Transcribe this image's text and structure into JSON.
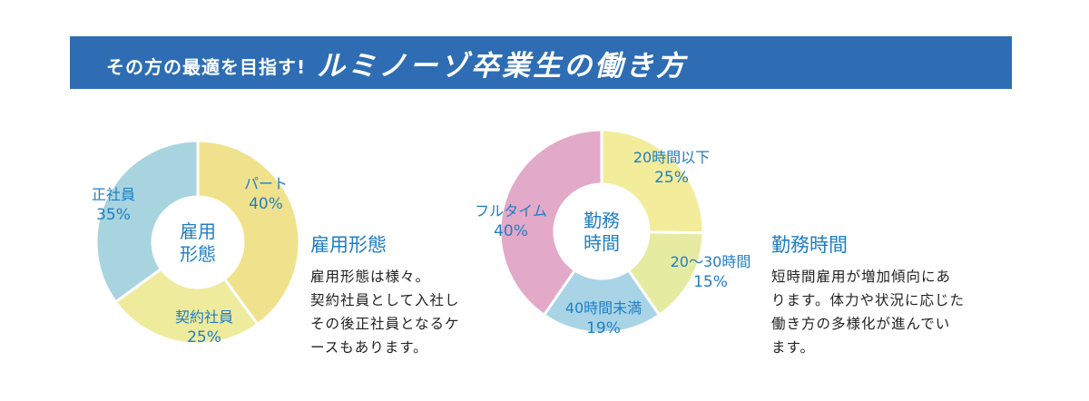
{
  "header": {
    "subtitle": "その方の最適を目指す!",
    "title": "ルミノーゾ卒業生の働き方"
  },
  "chart_data": [
    {
      "type": "pie",
      "title": "雇用形態",
      "center_label": [
        "雇用",
        "形態"
      ],
      "slices": [
        {
          "label": "パート",
          "value": 40,
          "display": "40%",
          "color": "#f0e28c"
        },
        {
          "label": "契約社員",
          "value": 25,
          "display": "25%",
          "color": "#eeeb9c"
        },
        {
          "label": "正社員",
          "value": 35,
          "display": "35%",
          "color": "#a8d4df"
        }
      ]
    },
    {
      "type": "pie",
      "title": "勤務時間",
      "center_label": [
        "勤務",
        "時間"
      ],
      "slices": [
        {
          "label": "20時間以下",
          "value": 25,
          "display": "25%",
          "color": "#f3ec9a"
        },
        {
          "label": "20〜30時間",
          "value": 15,
          "display": "15%",
          "color": "#e5eba1"
        },
        {
          "label": "40時間未満",
          "value": 19,
          "display": "19%",
          "color": "#a8d4e6"
        },
        {
          "label": "フルタイム",
          "value": 40,
          "display": "40%",
          "color": "#e3a9c8"
        }
      ]
    }
  ],
  "sections": {
    "employment": {
      "title": "雇用形態",
      "lines": [
        "雇用形態は様々。",
        "契約社員として入社し",
        "その後正社員となるケ",
        "ースもあります。"
      ]
    },
    "hours": {
      "title": "勤務時間",
      "lines": [
        "短時間雇用が増加傾向にあ",
        "ります。体力や状況に応じた",
        "働き方の多様化が進んでい",
        "ます。"
      ]
    }
  },
  "colors": {
    "banner": "#2e6db3",
    "label": "#1f7ec4"
  }
}
